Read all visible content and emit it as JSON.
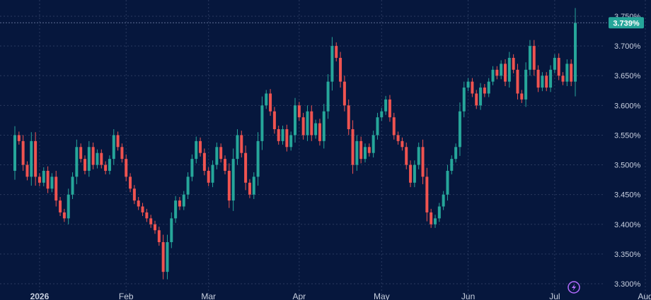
{
  "colors": {
    "background": "#06173d",
    "grid": "#2a3a5f",
    "up": "#26a69a",
    "down": "#ef5350",
    "axis_text": "#c9d1e0",
    "last_price_bg": "#26a69a",
    "bolt": "#b36bff"
  },
  "icons": {
    "bolt": "lightning-bolt-icon"
  },
  "chart_data": {
    "type": "candlestick",
    "title": "",
    "ylim": [
      3.295,
      3.77
    ],
    "y_ticks": [
      3.3,
      3.35,
      3.4,
      3.45,
      3.5,
      3.55,
      3.6,
      3.65,
      3.7,
      3.75
    ],
    "y_tick_labels": [
      "3.300%",
      "3.350%",
      "3.400%",
      "3.450%",
      "3.500%",
      "3.550%",
      "3.600%",
      "3.650%",
      "3.700%",
      "3.750%"
    ],
    "x_ticks": [
      {
        "label": "2026",
        "index": 6,
        "bold": true
      },
      {
        "label": "Feb",
        "index": 27,
        "bold": false
      },
      {
        "label": "Mar",
        "index": 47,
        "bold": false
      },
      {
        "label": "Apr",
        "index": 69,
        "bold": false
      },
      {
        "label": "May",
        "index": 89,
        "bold": false
      },
      {
        "label": "Jun",
        "index": 110,
        "bold": false
      },
      {
        "label": "Jul",
        "index": 131,
        "bold": false
      },
      {
        "label": "Aug",
        "index": 153,
        "bold": false
      }
    ],
    "last_price": 3.739,
    "last_price_label": "3.739%",
    "candles": [
      [
        3.49,
        3.55
      ],
      [
        3.55,
        3.54
      ],
      [
        3.54,
        3.5
      ],
      [
        3.5,
        3.48
      ],
      [
        3.48,
        3.54
      ],
      [
        3.54,
        3.48
      ],
      [
        3.48,
        3.47
      ],
      [
        3.47,
        3.49
      ],
      [
        3.49,
        3.46
      ],
      [
        3.46,
        3.48
      ],
      [
        3.48,
        3.44
      ],
      [
        3.44,
        3.42
      ],
      [
        3.42,
        3.41
      ],
      [
        3.41,
        3.45
      ],
      [
        3.45,
        3.48
      ],
      [
        3.48,
        3.53
      ],
      [
        3.53,
        3.51
      ],
      [
        3.51,
        3.49
      ],
      [
        3.49,
        3.53
      ],
      [
        3.53,
        3.5
      ],
      [
        3.5,
        3.52
      ],
      [
        3.52,
        3.5
      ],
      [
        3.5,
        3.49
      ],
      [
        3.49,
        3.51
      ],
      [
        3.51,
        3.55
      ],
      [
        3.55,
        3.53
      ],
      [
        3.53,
        3.51
      ],
      [
        3.51,
        3.48
      ],
      [
        3.48,
        3.46
      ],
      [
        3.46,
        3.44
      ],
      [
        3.44,
        3.43
      ],
      [
        3.43,
        3.42
      ],
      [
        3.42,
        3.41
      ],
      [
        3.41,
        3.4
      ],
      [
        3.4,
        3.39
      ],
      [
        3.39,
        3.37
      ],
      [
        3.37,
        3.32
      ],
      [
        3.32,
        3.37
      ],
      [
        3.37,
        3.41
      ],
      [
        3.41,
        3.44
      ],
      [
        3.44,
        3.43
      ],
      [
        3.43,
        3.45
      ],
      [
        3.45,
        3.48
      ],
      [
        3.48,
        3.51
      ],
      [
        3.51,
        3.54
      ],
      [
        3.54,
        3.52
      ],
      [
        3.52,
        3.49
      ],
      [
        3.49,
        3.47
      ],
      [
        3.47,
        3.5
      ],
      [
        3.5,
        3.53
      ],
      [
        3.53,
        3.51
      ],
      [
        3.51,
        3.49
      ],
      [
        3.49,
        3.44
      ],
      [
        3.44,
        3.51
      ],
      [
        3.51,
        3.55
      ],
      [
        3.55,
        3.52
      ],
      [
        3.52,
        3.47
      ],
      [
        3.47,
        3.45
      ],
      [
        3.45,
        3.48
      ],
      [
        3.48,
        3.54
      ],
      [
        3.54,
        3.6
      ],
      [
        3.6,
        3.62
      ],
      [
        3.62,
        3.59
      ],
      [
        3.59,
        3.56
      ],
      [
        3.56,
        3.54
      ],
      [
        3.54,
        3.56
      ],
      [
        3.56,
        3.53
      ],
      [
        3.53,
        3.55
      ],
      [
        3.55,
        3.6
      ],
      [
        3.6,
        3.58
      ],
      [
        3.58,
        3.55
      ],
      [
        3.55,
        3.59
      ],
      [
        3.59,
        3.55
      ],
      [
        3.55,
        3.57
      ],
      [
        3.57,
        3.54
      ],
      [
        3.54,
        3.59
      ],
      [
        3.59,
        3.64
      ],
      [
        3.64,
        3.7
      ],
      [
        3.7,
        3.68
      ],
      [
        3.68,
        3.64
      ],
      [
        3.64,
        3.6
      ],
      [
        3.6,
        3.56
      ],
      [
        3.56,
        3.5
      ],
      [
        3.5,
        3.54
      ],
      [
        3.54,
        3.51
      ],
      [
        3.51,
        3.53
      ],
      [
        3.53,
        3.52
      ],
      [
        3.52,
        3.55
      ],
      [
        3.55,
        3.58
      ],
      [
        3.58,
        3.59
      ],
      [
        3.59,
        3.61
      ],
      [
        3.61,
        3.58
      ],
      [
        3.58,
        3.55
      ],
      [
        3.55,
        3.54
      ],
      [
        3.54,
        3.53
      ],
      [
        3.53,
        3.5
      ],
      [
        3.5,
        3.47
      ],
      [
        3.47,
        3.5
      ],
      [
        3.5,
        3.53
      ],
      [
        3.53,
        3.48
      ],
      [
        3.48,
        3.42
      ],
      [
        3.42,
        3.4
      ],
      [
        3.4,
        3.41
      ],
      [
        3.41,
        3.43
      ],
      [
        3.43,
        3.45
      ],
      [
        3.45,
        3.49
      ],
      [
        3.49,
        3.51
      ],
      [
        3.51,
        3.53
      ],
      [
        3.53,
        3.59
      ],
      [
        3.59,
        3.63
      ],
      [
        3.63,
        3.64
      ],
      [
        3.64,
        3.62
      ],
      [
        3.62,
        3.6
      ],
      [
        3.6,
        3.63
      ],
      [
        3.63,
        3.62
      ],
      [
        3.62,
        3.64
      ],
      [
        3.64,
        3.66
      ],
      [
        3.66,
        3.65
      ],
      [
        3.65,
        3.67
      ],
      [
        3.67,
        3.64
      ],
      [
        3.64,
        3.68
      ],
      [
        3.68,
        3.66
      ],
      [
        3.66,
        3.62
      ],
      [
        3.62,
        3.61
      ],
      [
        3.61,
        3.66
      ],
      [
        3.66,
        3.7
      ],
      [
        3.7,
        3.66
      ],
      [
        3.66,
        3.63
      ],
      [
        3.63,
        3.65
      ],
      [
        3.65,
        3.63
      ],
      [
        3.63,
        3.66
      ],
      [
        3.66,
        3.68
      ],
      [
        3.68,
        3.65
      ],
      [
        3.65,
        3.64
      ],
      [
        3.64,
        3.67
      ],
      [
        3.67,
        3.64
      ],
      [
        3.64,
        3.739
      ]
    ]
  }
}
